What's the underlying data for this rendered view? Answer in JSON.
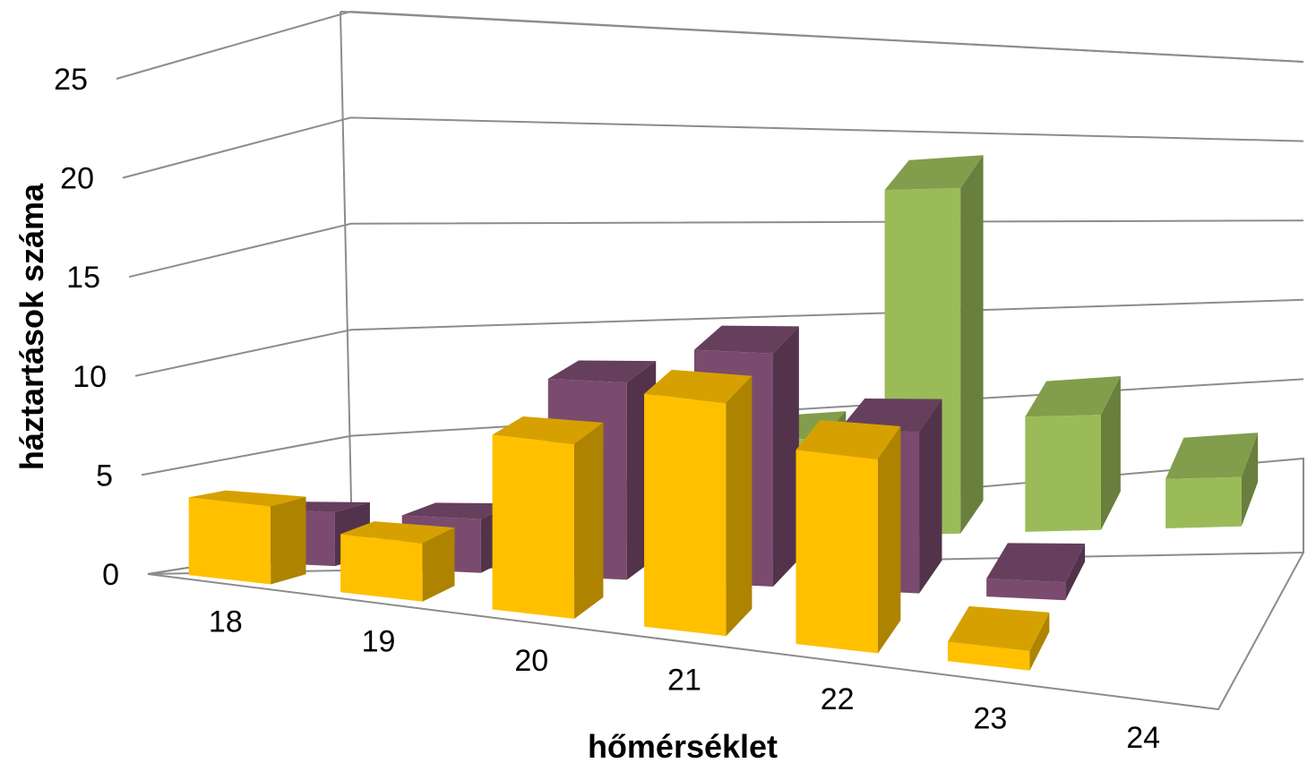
{
  "chart_data": {
    "type": "bar",
    "title": "",
    "xlabel": "hőmérséklet",
    "ylabel": "háztartások száma",
    "categories": [
      "18",
      "19",
      "20",
      "21",
      "22",
      "23",
      "24"
    ],
    "ylim": [
      0,
      25
    ],
    "yticks": [
      "0",
      "5",
      "10",
      "15",
      "20",
      "25"
    ],
    "grid": true,
    "legend": "none",
    "series": [
      {
        "values": [
          4,
          3,
          9,
          12,
          10,
          1,
          0
        ],
        "color": "#ffc000"
      },
      {
        "values": [
          3,
          3,
          11,
          13,
          9,
          1,
          0
        ],
        "color": "#7a4b6e"
      },
      {
        "values": [
          0,
          0,
          3,
          6,
          21,
          7,
          3
        ],
        "color": "#9bbb59"
      }
    ]
  }
}
